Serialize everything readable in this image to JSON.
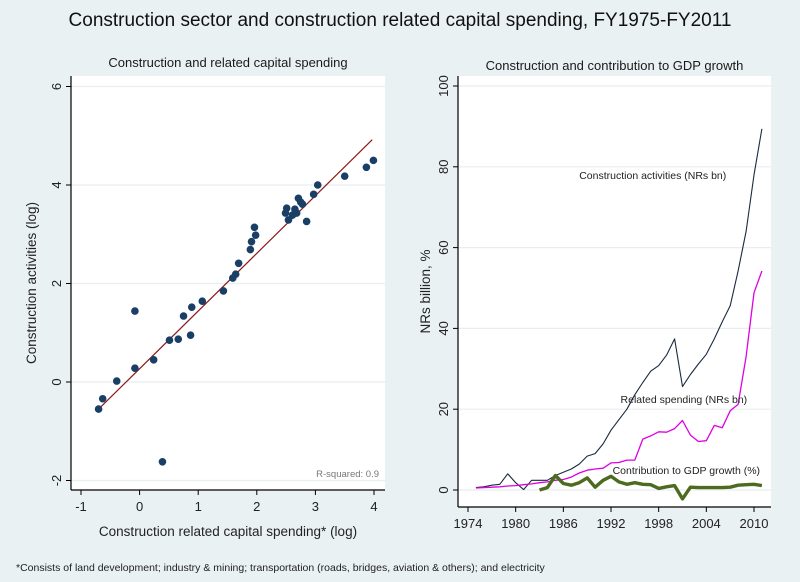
{
  "title": "Construction sector and construction related capital spending, FY1975-FY2011",
  "footnote": "*Consists of land development; industry & mining; transportation (roads, bridges, aviation & others); and electricity",
  "colors": {
    "background": "#eaf1f3",
    "plot_bg": "#ffffff",
    "scatter_marker": "#1a3f66",
    "fit_line": "#8b1a1a",
    "construction_line": "#1a2a40",
    "related_line": "#e000e0",
    "gdp_line": "#4d6b1f",
    "grid": "#e8eef0"
  },
  "chart_data": [
    {
      "type": "scatter",
      "title": "Construction and related capital spending",
      "xlabel": "Construction related capital spending* (log)",
      "ylabel": "Construction activities (log)",
      "xlim": [
        -1.2,
        4.2
      ],
      "ylim": [
        -2.2,
        6.2
      ],
      "xticks": [
        -1,
        0,
        1,
        2,
        3,
        4
      ],
      "yticks": [
        -2,
        0,
        2,
        4,
        6
      ],
      "grid": "horizontal",
      "annotation": "R-squared: 0.9",
      "fit_line": {
        "x": [
          -0.7,
          3.97
        ],
        "y": [
          -0.55,
          4.92
        ]
      },
      "points": [
        {
          "x": -0.7,
          "y": -0.55
        },
        {
          "x": -0.63,
          "y": -0.34
        },
        {
          "x": -0.39,
          "y": 0.02
        },
        {
          "x": -0.08,
          "y": 1.44
        },
        {
          "x": -0.08,
          "y": 0.28
        },
        {
          "x": 0.24,
          "y": 0.45
        },
        {
          "x": 0.39,
          "y": -1.62
        },
        {
          "x": 0.51,
          "y": 0.85
        },
        {
          "x": 0.66,
          "y": 0.87
        },
        {
          "x": 0.75,
          "y": 1.34
        },
        {
          "x": 0.87,
          "y": 0.95
        },
        {
          "x": 0.89,
          "y": 1.52
        },
        {
          "x": 1.07,
          "y": 1.64
        },
        {
          "x": 1.43,
          "y": 1.85
        },
        {
          "x": 1.59,
          "y": 2.11
        },
        {
          "x": 1.64,
          "y": 2.19
        },
        {
          "x": 1.69,
          "y": 2.41
        },
        {
          "x": 1.89,
          "y": 2.69
        },
        {
          "x": 1.91,
          "y": 2.85
        },
        {
          "x": 1.96,
          "y": 3.14
        },
        {
          "x": 1.98,
          "y": 2.98
        },
        {
          "x": 2.49,
          "y": 3.43
        },
        {
          "x": 2.51,
          "y": 3.53
        },
        {
          "x": 2.54,
          "y": 3.29
        },
        {
          "x": 2.61,
          "y": 3.39
        },
        {
          "x": 2.65,
          "y": 3.51
        },
        {
          "x": 2.68,
          "y": 3.43
        },
        {
          "x": 2.71,
          "y": 3.73
        },
        {
          "x": 2.75,
          "y": 3.65
        },
        {
          "x": 2.78,
          "y": 3.61
        },
        {
          "x": 2.85,
          "y": 3.26
        },
        {
          "x": 2.97,
          "y": 3.81
        },
        {
          "x": 3.04,
          "y": 4.0
        },
        {
          "x": 3.5,
          "y": 4.18
        },
        {
          "x": 3.87,
          "y": 4.36
        },
        {
          "x": 3.99,
          "y": 4.5
        }
      ]
    },
    {
      "type": "line",
      "title": "Construction and contribution to GDP growth",
      "xlabel": "",
      "ylabel": "NRs billion, %",
      "xlim": [
        1972.8,
        2012.2
      ],
      "ylim": [
        -4.2,
        102
      ],
      "xticks": [
        1974,
        1980,
        1986,
        1992,
        1998,
        2004,
        2010
      ],
      "yticks": [
        0,
        20,
        40,
        60,
        80,
        100
      ],
      "grid": "horizontal",
      "series": [
        {
          "name": "Construction activities (NRs bn)",
          "x": [
            1975,
            1976,
            1977,
            1978,
            1979,
            1980,
            1981,
            1982,
            1983,
            1984,
            1985,
            1986,
            1987,
            1988,
            1989,
            1990,
            1991,
            1992,
            1993,
            1994,
            1995,
            1996,
            1997,
            1998,
            1999,
            2000,
            2001,
            2002,
            2003,
            2004,
            2005,
            2006,
            2007,
            2008,
            2009,
            2010,
            2011
          ],
          "y": [
            0.6,
            0.8,
            1.2,
            1.4,
            4.0,
            1.8,
            0.1,
            2.4,
            2.4,
            2.4,
            3.6,
            4.4,
            5.2,
            6.4,
            8.4,
            9.0,
            11.4,
            14.8,
            17.4,
            20.0,
            23.6,
            26.6,
            29.4,
            30.8,
            33.4,
            37.4,
            25.6,
            28.6,
            31.2,
            33.6,
            37.4,
            41.6,
            45.6,
            54.2,
            64.0,
            78.0,
            89.4
          ]
        },
        {
          "name": "Related spending (NRs bn)",
          "x": [
            1975,
            1976,
            1977,
            1978,
            1979,
            1980,
            1981,
            1982,
            1983,
            1984,
            1985,
            1986,
            1987,
            1988,
            1989,
            1990,
            1991,
            1992,
            1993,
            1994,
            1995,
            1996,
            1997,
            1998,
            1999,
            2000,
            2001,
            2002,
            2003,
            2004,
            2005,
            2006,
            2007,
            2008,
            2009,
            2010,
            2011
          ],
          "y": [
            0.5,
            0.6,
            0.7,
            0.8,
            1.0,
            1.1,
            1.3,
            1.5,
            1.8,
            2.0,
            2.4,
            2.6,
            3.2,
            4.2,
            4.9,
            5.2,
            5.4,
            6.7,
            6.8,
            7.4,
            7.4,
            12.6,
            13.4,
            14.4,
            14.3,
            15.2,
            17.2,
            13.6,
            12.0,
            12.2,
            16.0,
            15.4,
            19.6,
            21.2,
            33.0,
            48.8,
            54.2
          ]
        },
        {
          "name": "Contribution to GDP growth (%)",
          "x": [
            1983,
            1984,
            1985,
            1986,
            1987,
            1988,
            1989,
            1990,
            1991,
            1992,
            1993,
            1994,
            1995,
            1996,
            1997,
            1998,
            1999,
            2000,
            2001,
            2002,
            2003,
            2004,
            2005,
            2006,
            2007,
            2008,
            2009,
            2010,
            2011
          ],
          "y": [
            0.0,
            0.6,
            3.6,
            1.6,
            1.2,
            1.8,
            3.0,
            0.7,
            2.4,
            3.4,
            2.0,
            1.4,
            1.8,
            1.4,
            1.3,
            0.4,
            0.8,
            1.1,
            -2.2,
            0.7,
            0.6,
            0.6,
            0.6,
            0.6,
            0.7,
            1.2,
            1.3,
            1.4,
            1.1
          ]
        }
      ],
      "labels": [
        {
          "text": "Construction activities (NRs bn)",
          "x": 1988,
          "y": 77
        },
        {
          "text": "Related spending (NRs bn)",
          "x": 1993.2,
          "y": 21.5
        },
        {
          "text": "Contribution to GDP growth (%)",
          "x": 1992.2,
          "y": 4
        }
      ]
    }
  ]
}
